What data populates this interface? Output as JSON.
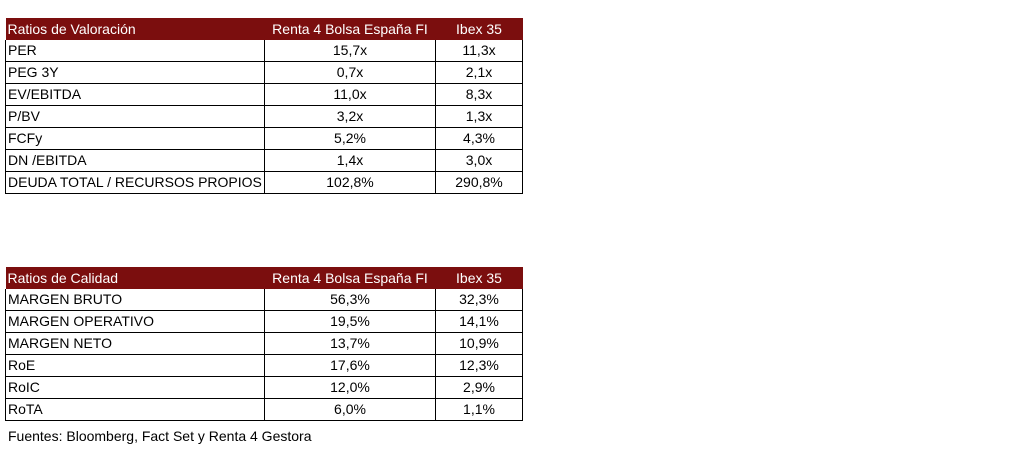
{
  "colors": {
    "header_background": "#7b0e0e",
    "header_text": "#ffffff",
    "border": "#000000"
  },
  "valoracion": {
    "headers": [
      "Ratios de Valoración",
      "Renta 4 Bolsa España FI",
      "Ibex 35"
    ],
    "rows": [
      [
        "PER",
        "15,7x",
        "11,3x"
      ],
      [
        "PEG 3Y",
        "0,7x",
        "2,1x"
      ],
      [
        "EV/EBITDA",
        "11,0x",
        "8,3x"
      ],
      [
        "P/BV",
        "3,2x",
        "1,3x"
      ],
      [
        "FCFy",
        "5,2%",
        "4,3%"
      ],
      [
        "DN /EBITDA",
        "1,4x",
        "3,0x"
      ],
      [
        "DEUDA TOTAL / RECURSOS PROPIOS",
        "102,8%",
        "290,8%"
      ]
    ]
  },
  "calidad": {
    "headers": [
      "Ratios de Calidad",
      "Renta 4 Bolsa España FI",
      "Ibex 35"
    ],
    "rows": [
      [
        "MARGEN BRUTO",
        "56,3%",
        "32,3%"
      ],
      [
        "MARGEN OPERATIVO",
        "19,5%",
        "14,1%"
      ],
      [
        "MARGEN NETO",
        "13,7%",
        "10,9%"
      ],
      [
        "RoE",
        "17,6%",
        "12,3%"
      ],
      [
        "RoIC",
        "12,0%",
        "2,9%"
      ],
      [
        "RoTA",
        "6,0%",
        "1,1%"
      ]
    ]
  },
  "source_note": "Fuentes: Bloomberg, Fact Set y Renta 4 Gestora"
}
